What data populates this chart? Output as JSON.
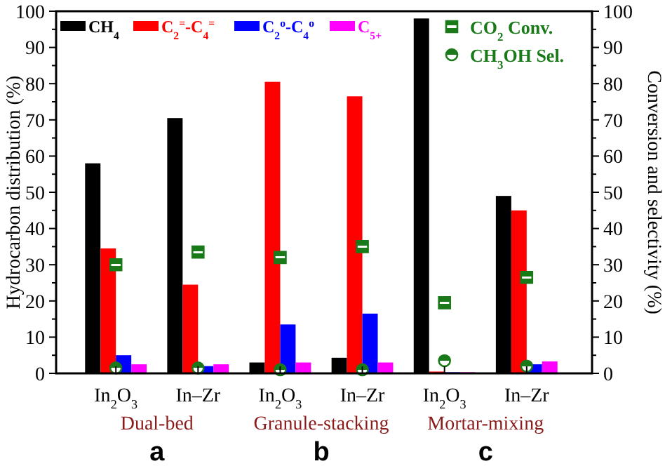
{
  "chart_data": {
    "type": "bar",
    "ylabel": "Hydrocarbon distribution (%)",
    "y2label": "Conversion and selectivity (%)",
    "categories": [
      "In$_{2}$O$_{3}$",
      "In–Zr",
      "In$_{2}$O$_{3}$",
      "In–Zr",
      "In$_{2}$O$_{3}$",
      "In–Zr"
    ],
    "series": [
      {
        "name": "CH$_{4}$",
        "color": "#000000",
        "values": [
          58,
          70.5,
          3,
          4.3,
          98,
          49
        ]
      },
      {
        "name": "C$_{2}$$^{=}$-C$_{4}$$^{=}$",
        "color": "#ff0000",
        "values": [
          34.5,
          24.5,
          80.5,
          76.5,
          0.5,
          45
        ]
      },
      {
        "name": "C$_{2}$$^{o}$-C$_{4}$$^{o}$",
        "color": "#0000ff",
        "values": [
          5,
          2,
          13.5,
          16.5,
          0.3,
          2.5
        ]
      },
      {
        "name": "C$_{5+}$",
        "color": "#ff00ff",
        "values": [
          2.5,
          2.5,
          3,
          3,
          0.3,
          3.3
        ]
      },
      {
        "name": "CO$_{2}$ Conv.",
        "type": "scatter",
        "axis": "y2",
        "marker": "square",
        "color": "#1a7a1a",
        "values": [
          30,
          33.5,
          32,
          35,
          19.5,
          26.5
        ]
      },
      {
        "name": "CH$_{3}$OH Sel.",
        "type": "scatter",
        "axis": "y2",
        "marker": "circle",
        "color": "#1a7a1a",
        "values": [
          1.5,
          1.5,
          1,
          1,
          3.5,
          2
        ]
      }
    ],
    "ylim": [
      0,
      100
    ],
    "yticks": [
      0,
      {
        "value": 5,
        "label": null
      },
      10,
      {
        "value": 15,
        "label": null
      },
      20,
      {
        "value": 25,
        "label": null
      },
      30,
      {
        "value": 35,
        "label": null
      },
      40,
      {
        "value": 45,
        "label": null
      },
      50,
      {
        "value": 55,
        "label": null
      },
      60,
      {
        "value": 65,
        "label": null
      },
      70,
      {
        "value": 75,
        "label": null
      },
      80,
      {
        "value": 85,
        "label": null
      },
      90,
      {
        "value": 95,
        "label": null
      },
      100
    ],
    "y2lim": [
      0,
      100
    ],
    "y2ticks": [
      0,
      {
        "value": 5,
        "label": null
      },
      10,
      {
        "value": 15,
        "label": null
      },
      20,
      {
        "value": 25,
        "label": null
      },
      30,
      {
        "value": 35,
        "label": null
      },
      40,
      {
        "value": 45,
        "label": null
      },
      50,
      {
        "value": 55,
        "label": null
      },
      60,
      {
        "value": 65,
        "label": null
      },
      70,
      {
        "value": 75,
        "label": null
      },
      80,
      {
        "value": 85,
        "label": null
      },
      90,
      {
        "value": 95,
        "label": null
      },
      100
    ],
    "legend": "top",
    "grid": false,
    "annotations": [
      "Dual-bed",
      "Granule-stacking",
      "Mortar-mixing",
      "a",
      "b",
      "c"
    ]
  }
}
